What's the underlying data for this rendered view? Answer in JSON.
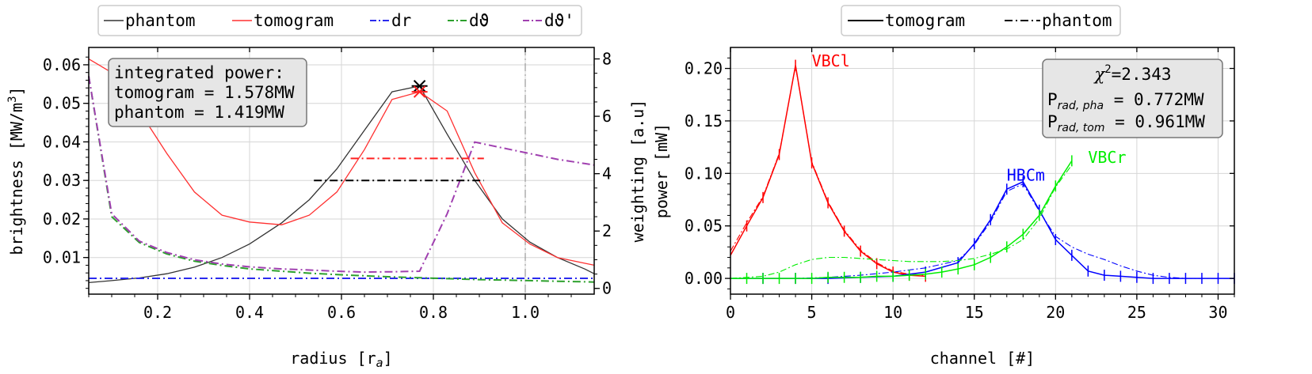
{
  "chart_data": [
    {
      "type": "line",
      "xlabel": "radius [r",
      "xlabel_sub": "a",
      "xlabel_end": "]",
      "ylabel_left": "brightness [MW/m",
      "ylabel_left_sup": "3",
      "ylabel_left_end": "]",
      "ylabel_right": "weighting [a.u]",
      "xlim": [
        0.05,
        1.15
      ],
      "ylim_left": [
        0.0005,
        0.0645
      ],
      "ylim_right": [
        -0.2,
        8.4
      ],
      "xticks": [
        "0.2",
        "0.4",
        "0.6",
        "0.8",
        "1.0"
      ],
      "xtick_values": [
        0.2,
        0.4,
        0.6,
        0.8,
        1.0
      ],
      "yticks_left": [
        "0.01",
        "0.02",
        "0.03",
        "0.04",
        "0.05",
        "0.06"
      ],
      "ytick_values_left": [
        0.01,
        0.02,
        0.03,
        0.04,
        0.05,
        0.06
      ],
      "yticks_right": [
        "0",
        "2",
        "4",
        "6",
        "8"
      ],
      "ytick_values_right": [
        0,
        2,
        4,
        6,
        8
      ],
      "grid": true,
      "legend_position": "top (outside)",
      "legend": [
        "phantom",
        "tomogram",
        "dr",
        "dϑ",
        "dϑ'"
      ],
      "legend_colors": [
        "#333333",
        "#ff3030",
        "#2a2aee",
        "#2ca02c",
        "#a040b0"
      ],
      "annotation": {
        "lines": [
          "integrated power:",
          "tomogram = 1.578MW",
          "phantom = 1.419MW"
        ],
        "position": "top-left"
      },
      "series": [
        {
          "name": "phantom",
          "axis": "left",
          "color": "#333333",
          "x": [
            0.05,
            0.1,
            0.16,
            0.22,
            0.28,
            0.34,
            0.4,
            0.47,
            0.53,
            0.59,
            0.65,
            0.71,
            0.77,
            0.83,
            0.89,
            0.95,
            1.01,
            1.07,
            1.13,
            1.15
          ],
          "y": [
            0.0035,
            0.004,
            0.0047,
            0.0058,
            0.0075,
            0.01,
            0.0135,
            0.019,
            0.025,
            0.033,
            0.043,
            0.053,
            0.0545,
            0.042,
            0.03,
            0.02,
            0.014,
            0.01,
            0.007,
            0.0058
          ]
        },
        {
          "name": "tomogram",
          "axis": "left",
          "color": "#ff3030",
          "x": [
            0.05,
            0.1,
            0.16,
            0.22,
            0.28,
            0.34,
            0.4,
            0.47,
            0.53,
            0.59,
            0.65,
            0.71,
            0.77,
            0.83,
            0.89,
            0.95,
            1.01,
            1.07,
            1.13,
            1.15
          ],
          "y": [
            0.0615,
            0.058,
            0.048,
            0.037,
            0.027,
            0.021,
            0.0192,
            0.0185,
            0.021,
            0.027,
            0.038,
            0.051,
            0.053,
            0.048,
            0.032,
            0.019,
            0.0135,
            0.01,
            0.0085,
            0.008
          ]
        },
        {
          "name": "dr",
          "axis": "right",
          "color": "#2a2aee",
          "dash": "dashdot",
          "x": [
            0.05,
            1.15
          ],
          "y": [
            0.35,
            0.35
          ]
        },
        {
          "name": "dϑ",
          "axis": "right",
          "color": "#2ca02c",
          "dash": "dashdot",
          "x": [
            0.05,
            0.1,
            0.16,
            0.22,
            0.28,
            0.34,
            0.4,
            0.47,
            0.53,
            0.59,
            0.65,
            0.71,
            0.77,
            0.83,
            0.89,
            0.95,
            1.01,
            1.07,
            1.13,
            1.15
          ],
          "y": [
            7.4,
            2.5,
            1.6,
            1.2,
            0.95,
            0.8,
            0.68,
            0.6,
            0.53,
            0.48,
            0.44,
            0.4,
            0.37,
            0.34,
            0.31,
            0.29,
            0.27,
            0.25,
            0.23,
            0.22
          ]
        },
        {
          "name": "dϑ'",
          "axis": "right",
          "color": "#a040b0",
          "dash": "dashdot",
          "x": [
            0.05,
            0.1,
            0.16,
            0.22,
            0.28,
            0.34,
            0.4,
            0.47,
            0.53,
            0.59,
            0.65,
            0.71,
            0.77,
            0.83,
            0.89,
            0.95,
            1.01,
            1.07,
            1.13,
            1.15
          ],
          "y": [
            7.4,
            2.6,
            1.65,
            1.25,
            1.0,
            0.85,
            0.75,
            0.68,
            0.64,
            0.6,
            0.57,
            0.58,
            0.6,
            2.6,
            5.1,
            4.9,
            4.7,
            4.5,
            4.35,
            4.3
          ]
        }
      ],
      "markers": [
        {
          "symbol": "x",
          "color": "#000000",
          "x": 0.77,
          "y": 0.0545
        },
        {
          "symbol": "x",
          "color": "#ff2020",
          "x": 0.77,
          "y": 0.053
        }
      ],
      "hbars": [
        {
          "color": "#ff2020",
          "x": [
            0.62,
            0.91
          ],
          "y": 0.0357,
          "dash": "dashdot"
        },
        {
          "color": "#000000",
          "x": [
            0.54,
            0.91
          ],
          "y": 0.03,
          "dash": "dashdot"
        }
      ],
      "vline": {
        "x": 1.0,
        "color": "#999999",
        "dash": "dashdot"
      }
    },
    {
      "type": "line",
      "xlabel": "channel [#]",
      "ylabel": "power [mW]",
      "xlim": [
        0,
        31
      ],
      "ylim": [
        -0.015,
        0.22
      ],
      "xticks": [
        "0",
        "5",
        "10",
        "15",
        "20",
        "25",
        "30"
      ],
      "xtick_values": [
        0,
        5,
        10,
        15,
        20,
        25,
        30
      ],
      "yticks": [
        "0.00",
        "0.05",
        "0.10",
        "0.15",
        "0.20"
      ],
      "ytick_values": [
        0,
        0.05,
        0.1,
        0.15,
        0.2
      ],
      "grid": true,
      "legend_position": "top (outside)",
      "legend": [
        "tomogram",
        "phantom"
      ],
      "annotation": {
        "chi": "χ",
        "chi_sup": "2",
        "chi_rest": "=2.343",
        "line2_main": "P",
        "line2_sub": "rad, pha",
        "line2_rest": " = 0.772MW",
        "line3_main": "P",
        "line3_sub": "rad, tom",
        "line3_rest": " = 0.961MW",
        "position": "top-right"
      },
      "camera_labels": [
        {
          "text": "VBCl",
          "color": "#ff0000",
          "x": 5.0,
          "y": 0.202
        },
        {
          "text": "HBCm",
          "color": "#0000ff",
          "x": 17.0,
          "y": 0.093
        },
        {
          "text": "VBCr",
          "color": "#00ee00",
          "x": 22.0,
          "y": 0.11
        }
      ],
      "series": [
        {
          "name": "VBCl tomogram",
          "color": "#ff0000",
          "style": "solid",
          "x": [
            0,
            1,
            2,
            3,
            4,
            5,
            6,
            7,
            8,
            9,
            10,
            11,
            12
          ],
          "y": [
            0.022,
            0.05,
            0.077,
            0.118,
            0.203,
            0.11,
            0.072,
            0.045,
            0.026,
            0.014,
            0.006,
            0.003,
            0.002
          ]
        },
        {
          "name": "VBCl phantom",
          "color": "#ff0000",
          "style": "dashdot",
          "x": [
            0,
            1,
            2,
            3,
            4,
            5,
            6,
            7,
            8,
            9,
            10,
            11,
            12
          ],
          "y": [
            0.026,
            0.053,
            0.078,
            0.119,
            0.202,
            0.111,
            0.073,
            0.046,
            0.027,
            0.015,
            0.007,
            0.004,
            0.003
          ]
        },
        {
          "name": "HBCm tomogram",
          "color": "#0000ff",
          "style": "solid",
          "x": [
            0,
            2,
            4,
            6,
            8,
            10,
            12,
            14,
            15,
            16,
            17,
            18,
            19,
            20,
            21,
            22,
            23,
            24,
            25,
            26,
            27,
            28,
            29,
            30,
            31
          ],
          "y": [
            0,
            0,
            0,
            0,
            0.001,
            0.002,
            0.006,
            0.015,
            0.033,
            0.056,
            0.085,
            0.092,
            0.065,
            0.037,
            0.022,
            0.007,
            0.003,
            0.002,
            0.001,
            0,
            0,
            0,
            0,
            0,
            0
          ]
        },
        {
          "name": "HBCm phantom",
          "color": "#0000ff",
          "style": "dashdot",
          "x": [
            0,
            2,
            4,
            6,
            8,
            10,
            12,
            14,
            15,
            16,
            17,
            18,
            19,
            20,
            21,
            22,
            23,
            24,
            25,
            26,
            27,
            28,
            29,
            30,
            31
          ],
          "y": [
            0,
            0,
            0,
            0.001,
            0.003,
            0.006,
            0.01,
            0.017,
            0.032,
            0.054,
            0.083,
            0.09,
            0.064,
            0.04,
            0.03,
            0.023,
            0.018,
            0.012,
            0.007,
            0.003,
            0.001,
            0,
            0,
            0,
            0
          ]
        },
        {
          "name": "VBCr tomogram",
          "color": "#00ee00",
          "style": "solid",
          "x": [
            0,
            1,
            2,
            3,
            4,
            5,
            6,
            7,
            8,
            9,
            10,
            11,
            12,
            13,
            14,
            15,
            16,
            17,
            18,
            19,
            20,
            21
          ],
          "y": [
            0,
            0,
            0,
            0,
            0,
            0,
            0.001,
            0.001,
            0.001,
            0.002,
            0.002,
            0.003,
            0.004,
            0.006,
            0.009,
            0.013,
            0.02,
            0.03,
            0.042,
            0.06,
            0.088,
            0.112
          ]
        },
        {
          "name": "VBCr phantom",
          "color": "#00ee00",
          "style": "dashdot",
          "x": [
            0,
            1,
            2,
            3,
            4,
            5,
            6,
            7,
            8,
            9,
            10,
            11,
            12,
            13,
            14,
            15,
            16,
            17,
            18,
            19,
            20,
            21
          ],
          "y": [
            0,
            0.001,
            0.002,
            0.006,
            0.013,
            0.018,
            0.02,
            0.02,
            0.019,
            0.018,
            0.017,
            0.016,
            0.016,
            0.016,
            0.017,
            0.019,
            0.023,
            0.028,
            0.037,
            0.057,
            0.087,
            0.108
          ]
        }
      ]
    }
  ]
}
